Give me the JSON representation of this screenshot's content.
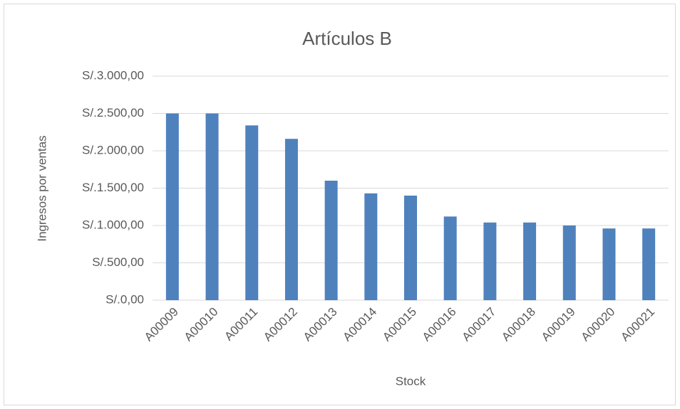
{
  "chart_data": {
    "type": "bar",
    "title": "Artículos B",
    "x_label": "Stock",
    "y_label": "Ingresos por ventas",
    "categories": [
      "A00009",
      "A00010",
      "A00011",
      "A00012",
      "A00013",
      "A00014",
      "A00015",
      "A00016",
      "A00017",
      "A00018",
      "A00019",
      "A00020",
      "A00021"
    ],
    "values": [
      2500,
      2500,
      2340,
      2160,
      1600,
      1430,
      1400,
      1120,
      1040,
      1040,
      1000,
      960,
      960
    ],
    "color": "#4f81bd",
    "ylim": [
      0,
      3000
    ],
    "yticks": [
      {
        "value": 0,
        "label": "S/.0,00"
      },
      {
        "value": 500,
        "label": "S/.500,00"
      },
      {
        "value": 1000,
        "label": "S/.1.000,00"
      },
      {
        "value": 1500,
        "label": "S/.1.500,00"
      },
      {
        "value": 2000,
        "label": "S/.2.000,00"
      },
      {
        "value": 2500,
        "label": "S/.2.500,00"
      },
      {
        "value": 3000,
        "label": "S/.3.000,00"
      }
    ],
    "grid": true
  }
}
